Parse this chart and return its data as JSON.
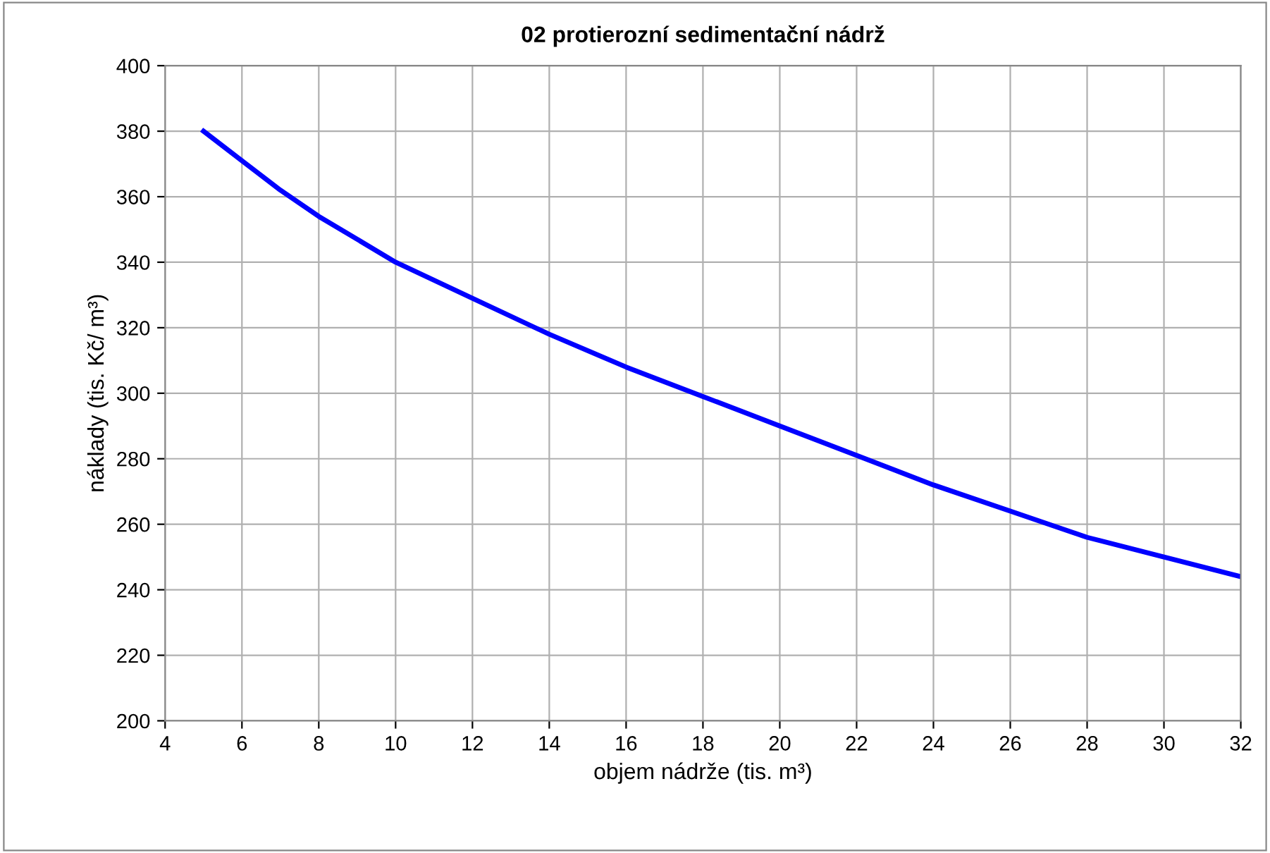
{
  "chart_data": {
    "type": "line",
    "title": "02 protierozní sedimentační nádrž",
    "xlabel": "objem nádrže (tis. m³)",
    "ylabel": "náklady (tis. Kč/ m³)",
    "x": [
      5,
      6,
      7,
      8,
      10,
      12,
      14,
      16,
      18,
      20,
      22,
      24,
      26,
      28,
      30,
      32
    ],
    "series": [
      {
        "color": "#0000ff",
        "values": [
          380,
          371,
          362,
          354,
          340,
          329,
          318,
          308,
          299,
          290,
          281,
          272,
          264,
          256,
          250,
          244
        ]
      }
    ],
    "xlim": [
      4,
      32
    ],
    "xticks": [
      4,
      6,
      8,
      10,
      12,
      14,
      16,
      18,
      20,
      22,
      24,
      26,
      28,
      30,
      32
    ],
    "ylim": [
      200,
      400
    ],
    "yticks": [
      200,
      220,
      240,
      260,
      280,
      300,
      320,
      340,
      360,
      380,
      400
    ],
    "grid": true,
    "marker": "none",
    "line_style": "solid",
    "legend": false
  }
}
